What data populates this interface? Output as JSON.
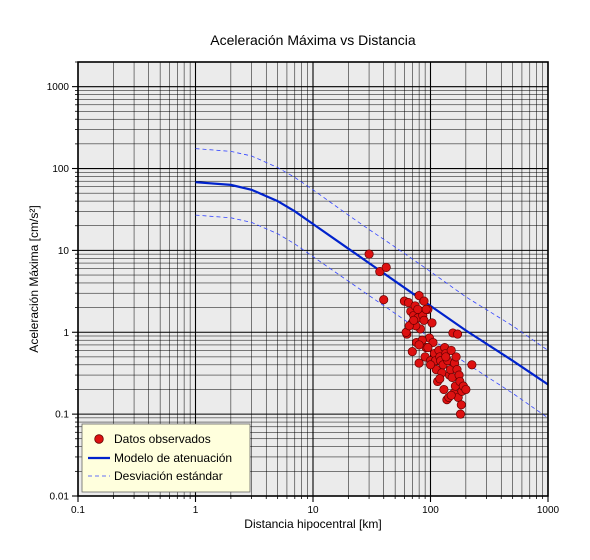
{
  "chart_data": {
    "type": "scatter",
    "title": "Aceleración Máxima vs Distancia",
    "xlabel": "Distancia hipocentral [km]",
    "ylabel": "Aceleración Máxima [cm/s²]",
    "xscale": "log",
    "yscale": "log",
    "xlim": [
      0.1,
      1000
    ],
    "ylim": [
      0.01,
      2000
    ],
    "x_ticks": [
      "0.1",
      "1",
      "10",
      "100",
      "1000"
    ],
    "y_ticks": [
      "0.01",
      "0.1",
      "1",
      "10",
      "100",
      "1000"
    ],
    "grid": true,
    "legend_position": "bottom-left",
    "colors": {
      "points": "#dd1111",
      "point_edge": "#660000",
      "model": "#0022cc",
      "deviation": "#3344ff",
      "plot_background": "#ebebeb",
      "legend_background": "#ffffdd"
    },
    "series": [
      {
        "name": "Datos observados",
        "kind": "scatter",
        "x": [
          30,
          37,
          42,
          40,
          60,
          65,
          63,
          68,
          70,
          72,
          74,
          76,
          78,
          80,
          80,
          82,
          84,
          86,
          88,
          90,
          92,
          95,
          98,
          100,
          103,
          105,
          108,
          110,
          112,
          115,
          118,
          120,
          122,
          125,
          128,
          130,
          132,
          135,
          138,
          140,
          143,
          145,
          148,
          150,
          153,
          155,
          158,
          160,
          163,
          165,
          168,
          170,
          172,
          175,
          178,
          180,
          183,
          185,
          190,
          200,
          225,
          70,
          75,
          85,
          95,
          100,
          88,
          92,
          80,
          78,
          120,
          135,
          150,
          62,
          66,
          72
        ],
        "y": [
          9.0,
          5.5,
          6.2,
          2.5,
          2.4,
          2.3,
          0.95,
          1.8,
          1.3,
          1.6,
          2.1,
          0.75,
          1.5,
          2.8,
          0.42,
          1.1,
          1.8,
          1.6,
          1.4,
          0.5,
          0.65,
          1.9,
          0.85,
          0.45,
          1.3,
          0.75,
          0.55,
          0.45,
          0.35,
          0.25,
          0.6,
          0.5,
          0.45,
          0.32,
          0.4,
          0.2,
          0.65,
          0.55,
          0.15,
          0.45,
          0.16,
          0.3,
          0.35,
          0.6,
          0.28,
          0.98,
          0.18,
          0.42,
          0.22,
          0.5,
          0.35,
          0.95,
          0.16,
          0.3,
          0.25,
          0.1,
          0.13,
          0.19,
          0.22,
          0.2,
          0.4,
          0.58,
          1.2,
          0.8,
          0.65,
          0.4,
          2.4,
          1.9,
          0.7,
          1.9,
          0.27,
          0.5,
          0.17,
          1.0,
          1.2,
          1.4
        ]
      },
      {
        "name": "Modelo de atenuación",
        "kind": "line",
        "x": [
          1,
          2,
          3,
          5,
          7,
          10,
          20,
          30,
          50,
          100,
          200,
          500,
          1000
        ],
        "y": [
          68,
          63,
          55,
          40,
          30,
          21,
          10.5,
          7,
          4.2,
          2.1,
          1.05,
          0.45,
          0.23
        ]
      },
      {
        "name": "Desviación estándar",
        "kind": "dashed-line",
        "x": [
          1,
          2,
          3,
          5,
          7,
          10,
          20,
          30,
          50,
          100,
          200,
          500,
          1000
        ],
        "y": [
          175,
          162,
          142,
          103,
          78,
          55,
          27,
          18,
          11,
          5.5,
          2.7,
          1.2,
          0.6
        ]
      },
      {
        "kind": "dashed-line",
        "x": [
          1,
          2,
          3,
          5,
          7,
          10,
          20,
          30,
          50,
          100,
          200,
          500,
          1000
        ],
        "y": [
          27,
          25,
          22,
          16,
          12,
          8.4,
          4.2,
          2.8,
          1.7,
          0.85,
          0.42,
          0.18,
          0.09
        ]
      }
    ]
  }
}
